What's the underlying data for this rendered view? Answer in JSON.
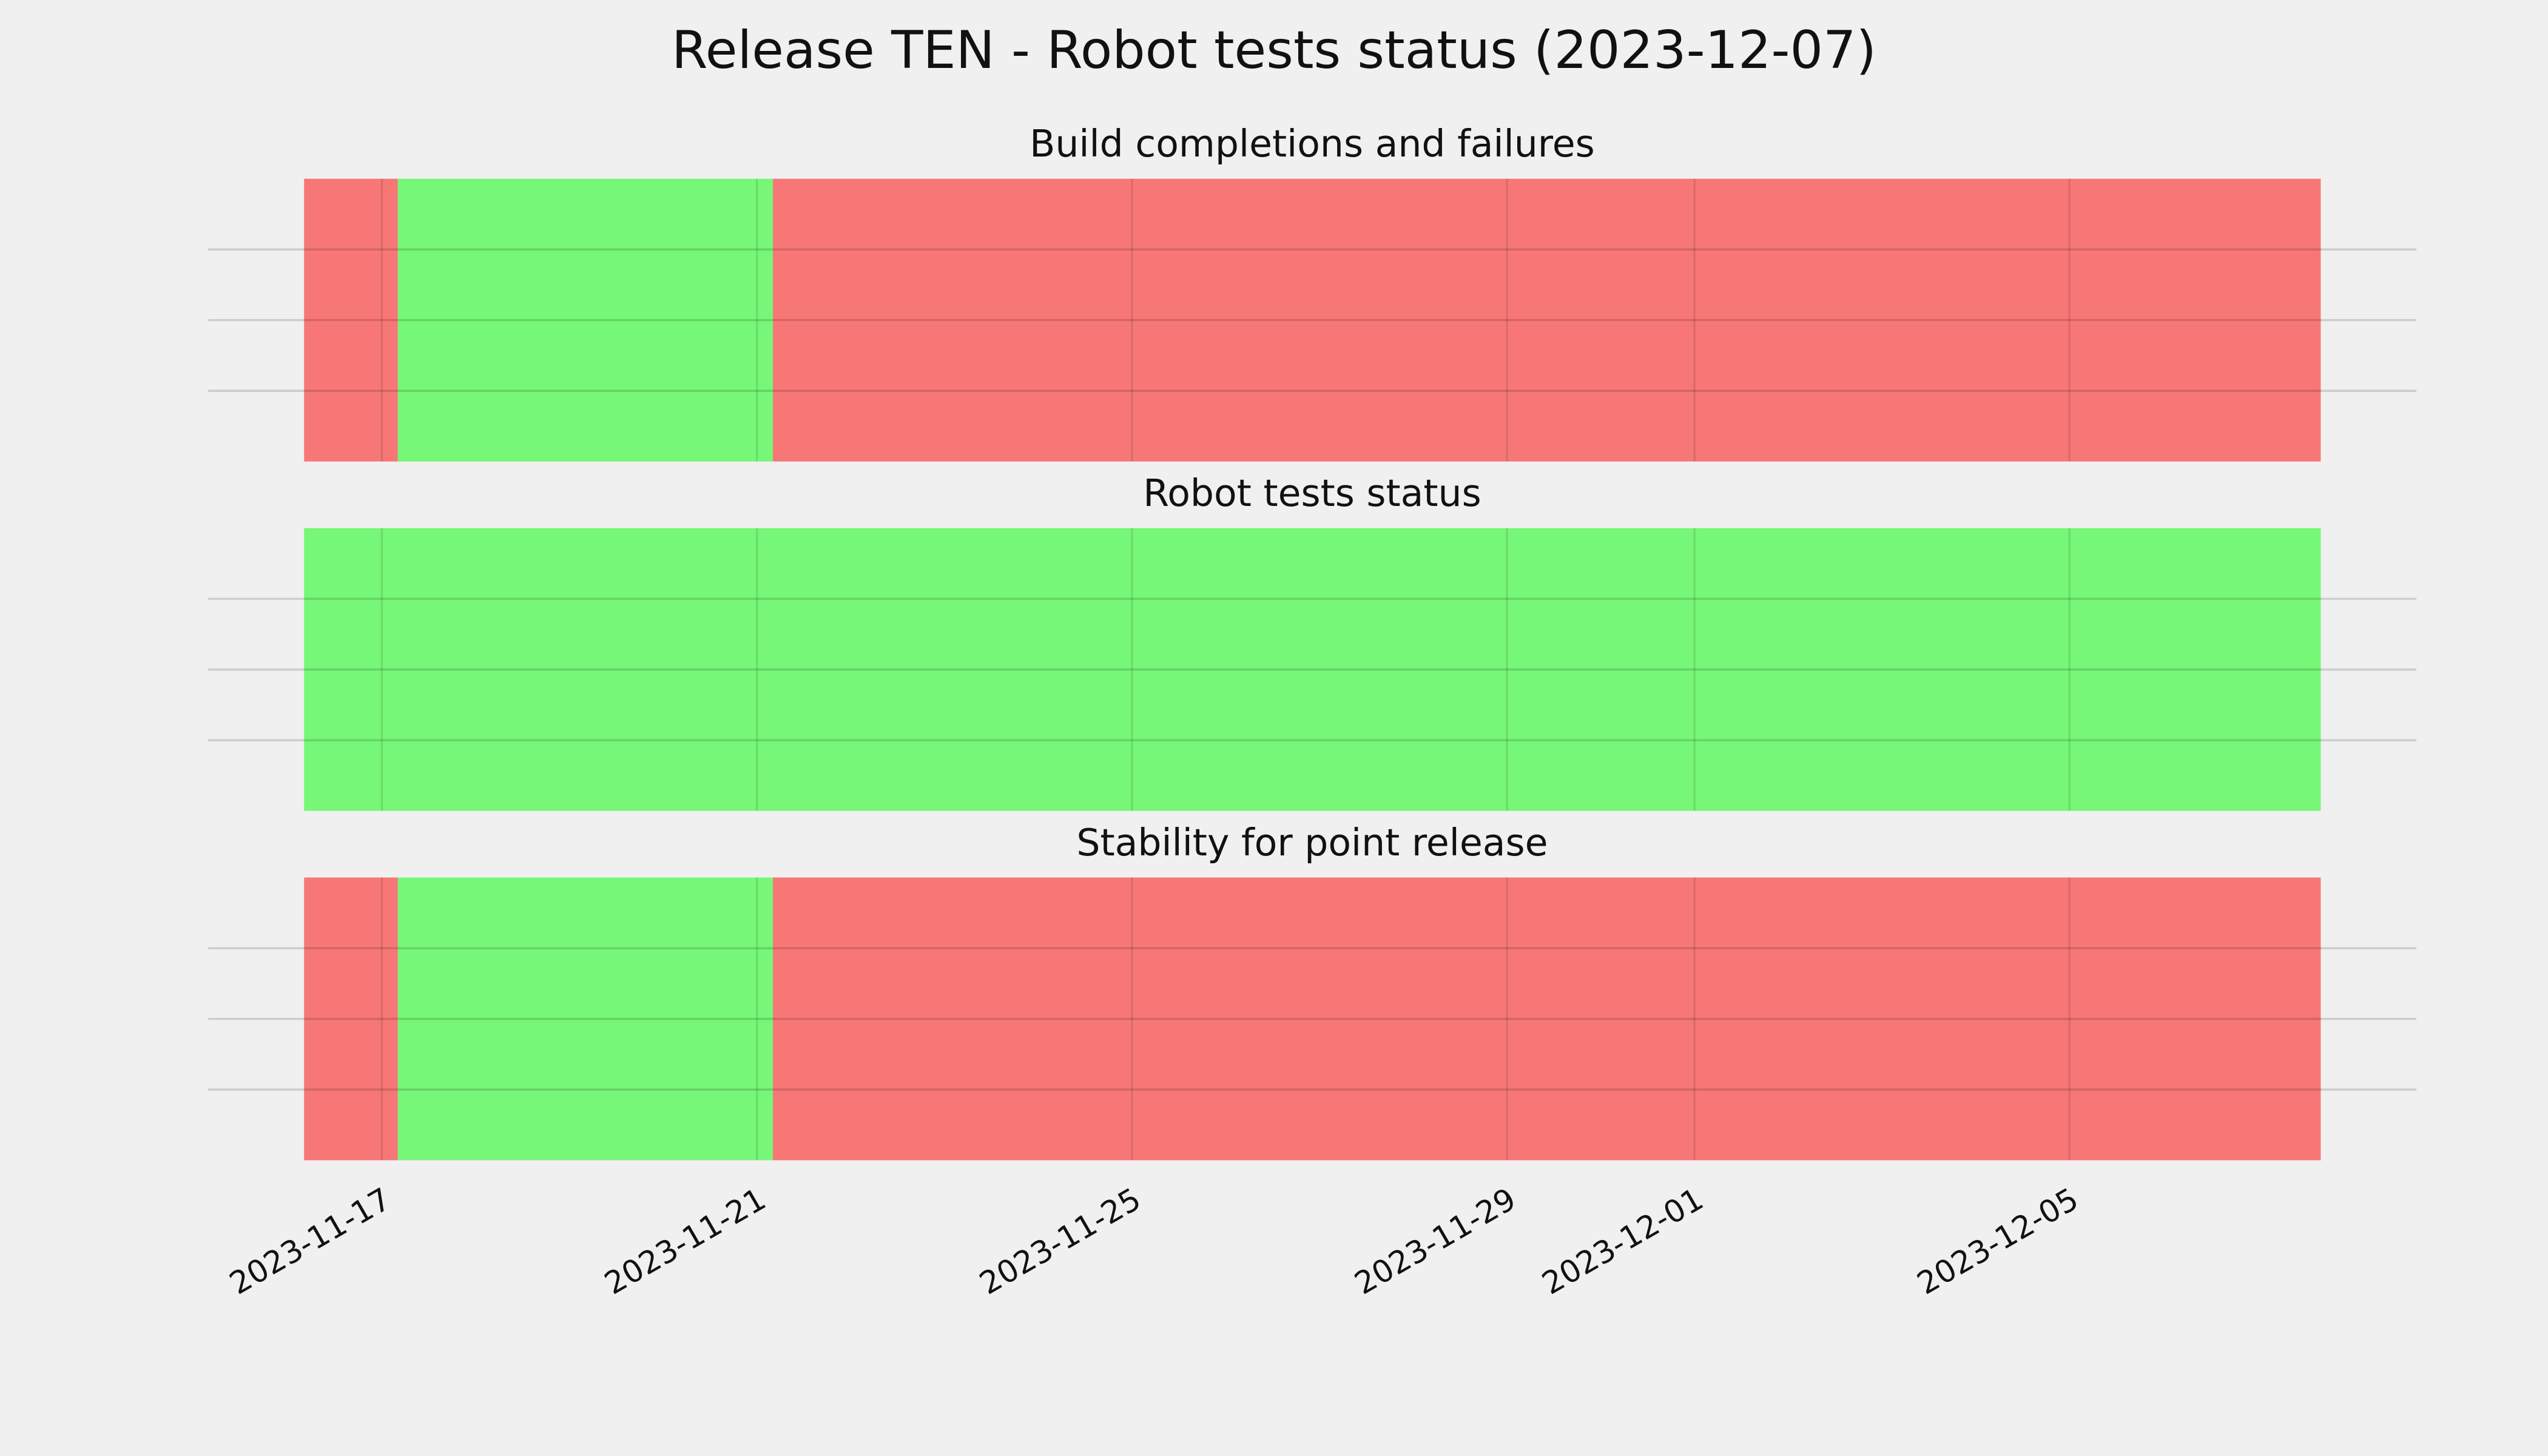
{
  "chart_data": {
    "type": "timeline",
    "title": "Release TEN - Robot tests status (2023-12-07)",
    "xlim": [
      -1.855,
      21.7
    ],
    "xticks": [
      {
        "value": 0,
        "label": "2023-11-17"
      },
      {
        "value": 4,
        "label": "2023-11-21"
      },
      {
        "value": 8,
        "label": "2023-11-25"
      },
      {
        "value": 12,
        "label": "2023-11-29"
      },
      {
        "value": 14,
        "label": "2023-12-01"
      },
      {
        "value": 18,
        "label": "2023-12-05"
      }
    ],
    "grid": true,
    "panels": [
      {
        "title": "Build completions and failures",
        "ylim": [
          0,
          1
        ],
        "yticks": [
          0.25,
          0.5,
          0.75
        ],
        "segments": [
          {
            "start": -0.83,
            "end": 0.17,
            "color": "#f77777"
          },
          {
            "start": 0.17,
            "end": 4.17,
            "color": "#77f777"
          },
          {
            "start": 4.17,
            "end": 20.68,
            "color": "#f77777"
          }
        ]
      },
      {
        "title": "Robot tests status",
        "ylim": [
          0,
          1
        ],
        "yticks": [
          0.25,
          0.5,
          0.75
        ],
        "segments": [
          {
            "start": -0.83,
            "end": 20.68,
            "color": "#77f777"
          }
        ]
      },
      {
        "title": "Stability for point release",
        "ylim": [
          0,
          1
        ],
        "yticks": [
          0.25,
          0.5,
          0.75
        ],
        "segments": [
          {
            "start": -0.83,
            "end": 0.17,
            "color": "#f77777"
          },
          {
            "start": 0.17,
            "end": 4.17,
            "color": "#77f777"
          },
          {
            "start": 4.17,
            "end": 20.68,
            "color": "#f77777"
          }
        ]
      }
    ]
  }
}
